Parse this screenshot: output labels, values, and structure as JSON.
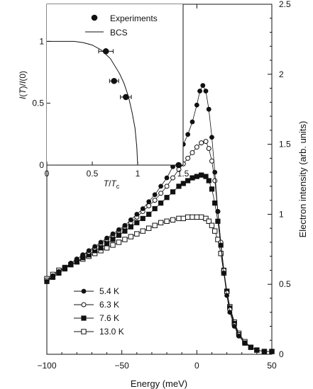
{
  "chart_data": [
    {
      "type": "scatter",
      "role": "main",
      "xlabel": "Energy (meV)",
      "ylabel": "Electron intensity (arb. units)",
      "xlim": [
        -100,
        50
      ],
      "ylim": [
        0,
        2.5
      ],
      "x_ticks": [
        "−100",
        "−50",
        "0",
        "50"
      ],
      "y_ticks": [
        "0",
        "0.5",
        "1",
        "1.5",
        "2",
        "2.5"
      ],
      "legend_position": "lower-left",
      "series": [
        {
          "name": "5.4 K",
          "marker": "filled-circle",
          "points": [
            [
              -100,
              0.52
            ],
            [
              -96,
              0.56
            ],
            [
              -92,
              0.59
            ],
            [
              -88,
              0.62
            ],
            [
              -84,
              0.65
            ],
            [
              -80,
              0.68
            ],
            [
              -76,
              0.71
            ],
            [
              -72,
              0.74
            ],
            [
              -68,
              0.77
            ],
            [
              -64,
              0.8
            ],
            [
              -60,
              0.83
            ],
            [
              -56,
              0.86
            ],
            [
              -52,
              0.89
            ],
            [
              -48,
              0.92
            ],
            [
              -44,
              0.96
            ],
            [
              -40,
              1.0
            ],
            [
              -36,
              1.04
            ],
            [
              -32,
              1.09
            ],
            [
              -28,
              1.14
            ],
            [
              -24,
              1.2
            ],
            [
              -20,
              1.26
            ],
            [
              -16,
              1.34
            ],
            [
              -12,
              1.43
            ],
            [
              -9,
              1.5
            ],
            [
              -6,
              1.57
            ],
            [
              -3,
              1.66
            ],
            [
              0,
              1.78
            ],
            [
              2,
              1.88
            ],
            [
              4,
              1.92
            ],
            [
              6,
              1.88
            ],
            [
              8,
              1.75
            ],
            [
              10,
              1.55
            ],
            [
              12,
              1.3
            ],
            [
              14,
              1.02
            ],
            [
              16,
              0.78
            ],
            [
              18,
              0.58
            ],
            [
              20,
              0.42
            ],
            [
              22,
              0.3
            ],
            [
              25,
              0.2
            ],
            [
              28,
              0.13
            ],
            [
              32,
              0.08
            ],
            [
              36,
              0.05
            ],
            [
              40,
              0.03
            ],
            [
              45,
              0.02
            ],
            [
              50,
              0.02
            ]
          ]
        },
        {
          "name": "6.3 K",
          "marker": "open-circle",
          "points": [
            [
              -100,
              0.53
            ],
            [
              -96,
              0.56
            ],
            [
              -92,
              0.59
            ],
            [
              -88,
              0.62
            ],
            [
              -84,
              0.65
            ],
            [
              -80,
              0.68
            ],
            [
              -76,
              0.71
            ],
            [
              -72,
              0.73
            ],
            [
              -68,
              0.76
            ],
            [
              -64,
              0.79
            ],
            [
              -60,
              0.82
            ],
            [
              -56,
              0.85
            ],
            [
              -52,
              0.88
            ],
            [
              -48,
              0.91
            ],
            [
              -44,
              0.94
            ],
            [
              -40,
              0.98
            ],
            [
              -36,
              1.02
            ],
            [
              -32,
              1.06
            ],
            [
              -28,
              1.1
            ],
            [
              -24,
              1.15
            ],
            [
              -20,
              1.2
            ],
            [
              -16,
              1.26
            ],
            [
              -12,
              1.32
            ],
            [
              -9,
              1.36
            ],
            [
              -6,
              1.4
            ],
            [
              -3,
              1.44
            ],
            [
              0,
              1.48
            ],
            [
              3,
              1.51
            ],
            [
              6,
              1.52
            ],
            [
              8,
              1.47
            ],
            [
              10,
              1.38
            ],
            [
              12,
              1.24
            ],
            [
              14,
              1.02
            ],
            [
              16,
              0.8
            ],
            [
              18,
              0.6
            ],
            [
              20,
              0.44
            ],
            [
              22,
              0.32
            ],
            [
              25,
              0.21
            ],
            [
              28,
              0.14
            ],
            [
              32,
              0.08
            ],
            [
              36,
              0.05
            ],
            [
              40,
              0.03
            ],
            [
              45,
              0.02
            ],
            [
              50,
              0.02
            ]
          ]
        },
        {
          "name": "7.6 K",
          "marker": "filled-square",
          "points": [
            [
              -100,
              0.52
            ],
            [
              -96,
              0.55
            ],
            [
              -92,
              0.58
            ],
            [
              -88,
              0.61
            ],
            [
              -84,
              0.64
            ],
            [
              -80,
              0.66
            ],
            [
              -76,
              0.69
            ],
            [
              -72,
              0.71
            ],
            [
              -68,
              0.74
            ],
            [
              -64,
              0.76
            ],
            [
              -60,
              0.79
            ],
            [
              -56,
              0.82
            ],
            [
              -52,
              0.85
            ],
            [
              -48,
              0.88
            ],
            [
              -44,
              0.91
            ],
            [
              -40,
              0.94
            ],
            [
              -36,
              0.97
            ],
            [
              -32,
              1.0
            ],
            [
              -28,
              1.04
            ],
            [
              -24,
              1.08
            ],
            [
              -20,
              1.12
            ],
            [
              -16,
              1.16
            ],
            [
              -12,
              1.2
            ],
            [
              -9,
              1.22
            ],
            [
              -6,
              1.24
            ],
            [
              -3,
              1.26
            ],
            [
              0,
              1.27
            ],
            [
              3,
              1.28
            ],
            [
              6,
              1.27
            ],
            [
              8,
              1.24
            ],
            [
              10,
              1.18
            ],
            [
              12,
              1.08
            ],
            [
              14,
              0.95
            ],
            [
              16,
              0.78
            ],
            [
              18,
              0.6
            ],
            [
              20,
              0.45
            ],
            [
              22,
              0.33
            ],
            [
              25,
              0.22
            ],
            [
              28,
              0.14
            ],
            [
              32,
              0.08
            ],
            [
              36,
              0.05
            ],
            [
              40,
              0.03
            ],
            [
              45,
              0.02
            ],
            [
              50,
              0.02
            ]
          ]
        },
        {
          "name": "13.0 K",
          "marker": "open-square",
          "points": [
            [
              -100,
              0.54
            ],
            [
              -96,
              0.57
            ],
            [
              -92,
              0.6
            ],
            [
              -88,
              0.62
            ],
            [
              -84,
              0.64
            ],
            [
              -80,
              0.66
            ],
            [
              -76,
              0.68
            ],
            [
              -72,
              0.7
            ],
            [
              -68,
              0.72
            ],
            [
              -64,
              0.74
            ],
            [
              -60,
              0.76
            ],
            [
              -56,
              0.78
            ],
            [
              -52,
              0.8
            ],
            [
              -48,
              0.82
            ],
            [
              -44,
              0.84
            ],
            [
              -40,
              0.86
            ],
            [
              -36,
              0.88
            ],
            [
              -32,
              0.9
            ],
            [
              -28,
              0.92
            ],
            [
              -24,
              0.94
            ],
            [
              -20,
              0.95
            ],
            [
              -16,
              0.96
            ],
            [
              -12,
              0.97
            ],
            [
              -9,
              0.97
            ],
            [
              -6,
              0.98
            ],
            [
              -3,
              0.98
            ],
            [
              0,
              0.98
            ],
            [
              3,
              0.98
            ],
            [
              6,
              0.97
            ],
            [
              8,
              0.95
            ],
            [
              10,
              0.92
            ],
            [
              12,
              0.88
            ],
            [
              14,
              0.82
            ],
            [
              16,
              0.72
            ],
            [
              18,
              0.58
            ],
            [
              20,
              0.45
            ],
            [
              22,
              0.34
            ],
            [
              25,
              0.23
            ],
            [
              28,
              0.15
            ],
            [
              32,
              0.09
            ],
            [
              36,
              0.05
            ],
            [
              40,
              0.03
            ],
            [
              45,
              0.02
            ],
            [
              50,
              0.02
            ]
          ]
        }
      ]
    },
    {
      "type": "scatter",
      "role": "inset",
      "xlim": [
        0,
        1.5
      ],
      "ylim": [
        0,
        1.3
      ],
      "x_ticks": [
        "0",
        "0.5",
        "1",
        "1.5"
      ],
      "y_ticks": [
        "0",
        "0.5",
        "1"
      ],
      "xlabel_parts": [
        {
          "text": "T",
          "italic": true
        },
        {
          "text": "/",
          "italic": false
        },
        {
          "text": "T",
          "italic": true
        },
        {
          "text": "c",
          "italic": false,
          "sub": true
        }
      ],
      "ylabel_parts": [
        {
          "text": "I",
          "italic": true
        },
        {
          "text": "(",
          "italic": false
        },
        {
          "text": "T",
          "italic": true
        },
        {
          "text": ")/",
          "italic": false
        },
        {
          "text": "I",
          "italic": true
        },
        {
          "text": "(0)",
          "italic": false
        }
      ],
      "legend": {
        "experiments": "Experiments",
        "bcs": "BCS"
      },
      "experiments": [
        {
          "x": 0.65,
          "y": 0.92,
          "xerr": 0.08
        },
        {
          "x": 0.74,
          "y": 0.68,
          "xerr": 0.05
        },
        {
          "x": 0.87,
          "y": 0.55,
          "xerr": 0.06
        },
        {
          "x": 1.45,
          "y": 0.0,
          "xerr": 0.0
        }
      ],
      "bcs_curve": [
        [
          0,
          1.0
        ],
        [
          0.3,
          1.0
        ],
        [
          0.4,
          0.99
        ],
        [
          0.5,
          0.97
        ],
        [
          0.6,
          0.93
        ],
        [
          0.7,
          0.86
        ],
        [
          0.8,
          0.74
        ],
        [
          0.85,
          0.66
        ],
        [
          0.9,
          0.55
        ],
        [
          0.94,
          0.42
        ],
        [
          0.97,
          0.3
        ],
        [
          0.99,
          0.15
        ],
        [
          1.0,
          0.0
        ]
      ]
    }
  ]
}
